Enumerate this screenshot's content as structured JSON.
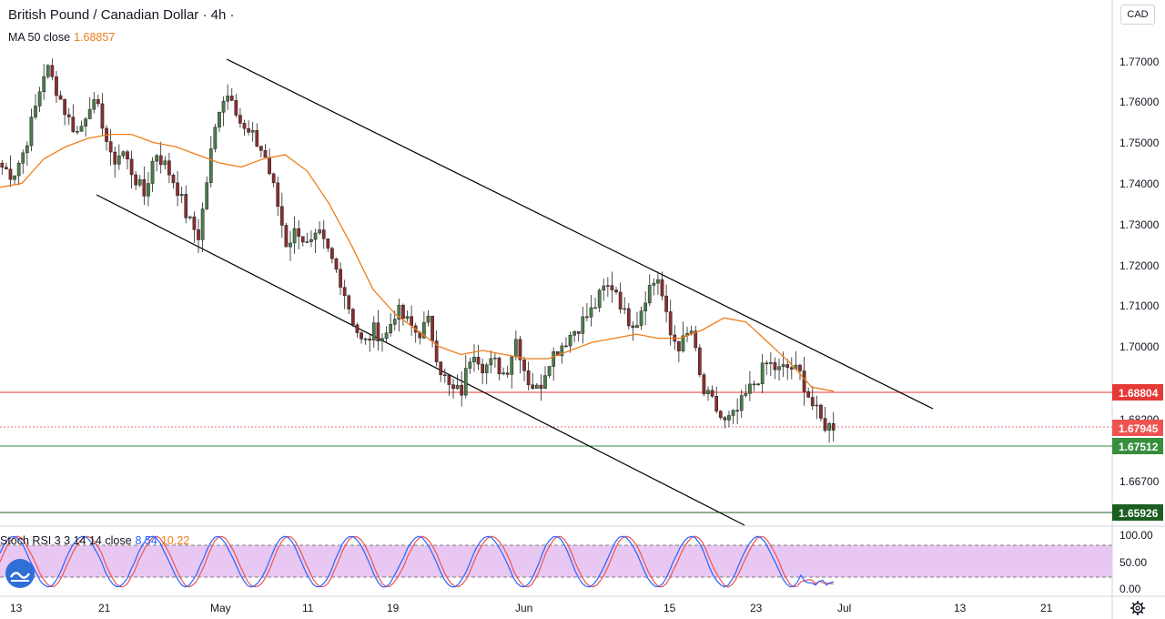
{
  "header": {
    "title": "British Pound / Canadian Dollar · 4h ·",
    "ma_label": "MA 50 close",
    "ma_value": "1.68857"
  },
  "stoch": {
    "label": "Stoch RSI 3 3 14 14 close",
    "k_value": "8.54",
    "d_value": "10.22",
    "axis_labels": [
      "100.00",
      "50.00",
      "0.00"
    ]
  },
  "price_axis": {
    "currency": "CAD",
    "labels": [
      "1.77000",
      "1.76000",
      "1.75000",
      "1.74000",
      "1.73000",
      "1.72000",
      "1.71000",
      "1.70000",
      "1.68200",
      "1.66700"
    ]
  },
  "price_tags": [
    {
      "value": "1.68804",
      "color": "#e53935"
    },
    {
      "value": "1.67945",
      "color": "#ef5350"
    },
    {
      "value": "1.67512",
      "color": "#388e3c"
    },
    {
      "value": "1.65926",
      "color": "#1b5e20"
    }
  ],
  "time_axis": {
    "labels": [
      "13",
      "21",
      "May",
      "11",
      "19",
      "Jun",
      "15",
      "23",
      "Jul",
      "13",
      "21"
    ]
  },
  "colors": {
    "up_candle": "#4a7f4a",
    "down_candle": "#8b2e2e",
    "ma_line": "#ef7d1a",
    "channel_line": "#000000",
    "stoch_k": "#2962ff",
    "stoch_d": "#ef5350",
    "stoch_band": "#e1bee7"
  },
  "chart_data": {
    "type": "candlestick",
    "symbol": "British Pound / Canadian Dollar",
    "interval": "4h",
    "ylim": [
      1.656,
      1.781
    ],
    "price_close_path": [
      1.744,
      1.742,
      1.748,
      1.758,
      1.769,
      1.763,
      1.756,
      1.752,
      1.76,
      1.757,
      1.745,
      1.748,
      1.742,
      1.737,
      1.748,
      1.744,
      1.739,
      1.731,
      1.727,
      1.746,
      1.761,
      1.762,
      1.753,
      1.751,
      1.747,
      1.737,
      1.725,
      1.729,
      1.724,
      1.727,
      1.722,
      1.716,
      1.707,
      1.7,
      1.704,
      1.702,
      1.709,
      1.706,
      1.703,
      1.706,
      1.695,
      1.689,
      1.689,
      1.7,
      1.695,
      1.696,
      1.693,
      1.702,
      1.692,
      1.689,
      1.697,
      1.7,
      1.703,
      1.706,
      1.709,
      1.714,
      1.715,
      1.707,
      1.706,
      1.714,
      1.717,
      1.703,
      1.7,
      1.704,
      1.689,
      1.686,
      1.681,
      1.683,
      1.688,
      1.692,
      1.696,
      1.694,
      1.695,
      1.693,
      1.686,
      1.681,
      1.68
    ],
    "ma50_path": [
      1.739,
      1.74,
      1.746,
      1.749,
      1.751,
      1.752,
      1.752,
      1.75,
      1.749,
      1.747,
      1.745,
      1.744,
      1.746,
      1.747,
      1.743,
      1.735,
      1.725,
      1.714,
      1.708,
      1.704,
      1.7,
      1.698,
      1.699,
      1.698,
      1.697,
      1.697,
      1.699,
      1.701,
      1.702,
      1.703,
      1.702,
      1.702,
      1.704,
      1.707,
      1.706,
      1.701,
      1.696,
      1.69,
      1.689
    ],
    "channel": {
      "upper": {
        "from": [
          1.771,
          "May"
        ],
        "to": [
          1.684,
          "Jul"
        ]
      },
      "lower": {
        "from": [
          1.737,
          "21"
        ],
        "to": [
          1.659,
          "Jun 23"
        ]
      }
    },
    "horizontal_levels": [
      1.68804,
      1.67945,
      1.67512,
      1.65926
    ],
    "stoch_rsi": {
      "k": 8.54,
      "d": 10.22,
      "upper_band": 80,
      "lower_band": 20
    }
  }
}
